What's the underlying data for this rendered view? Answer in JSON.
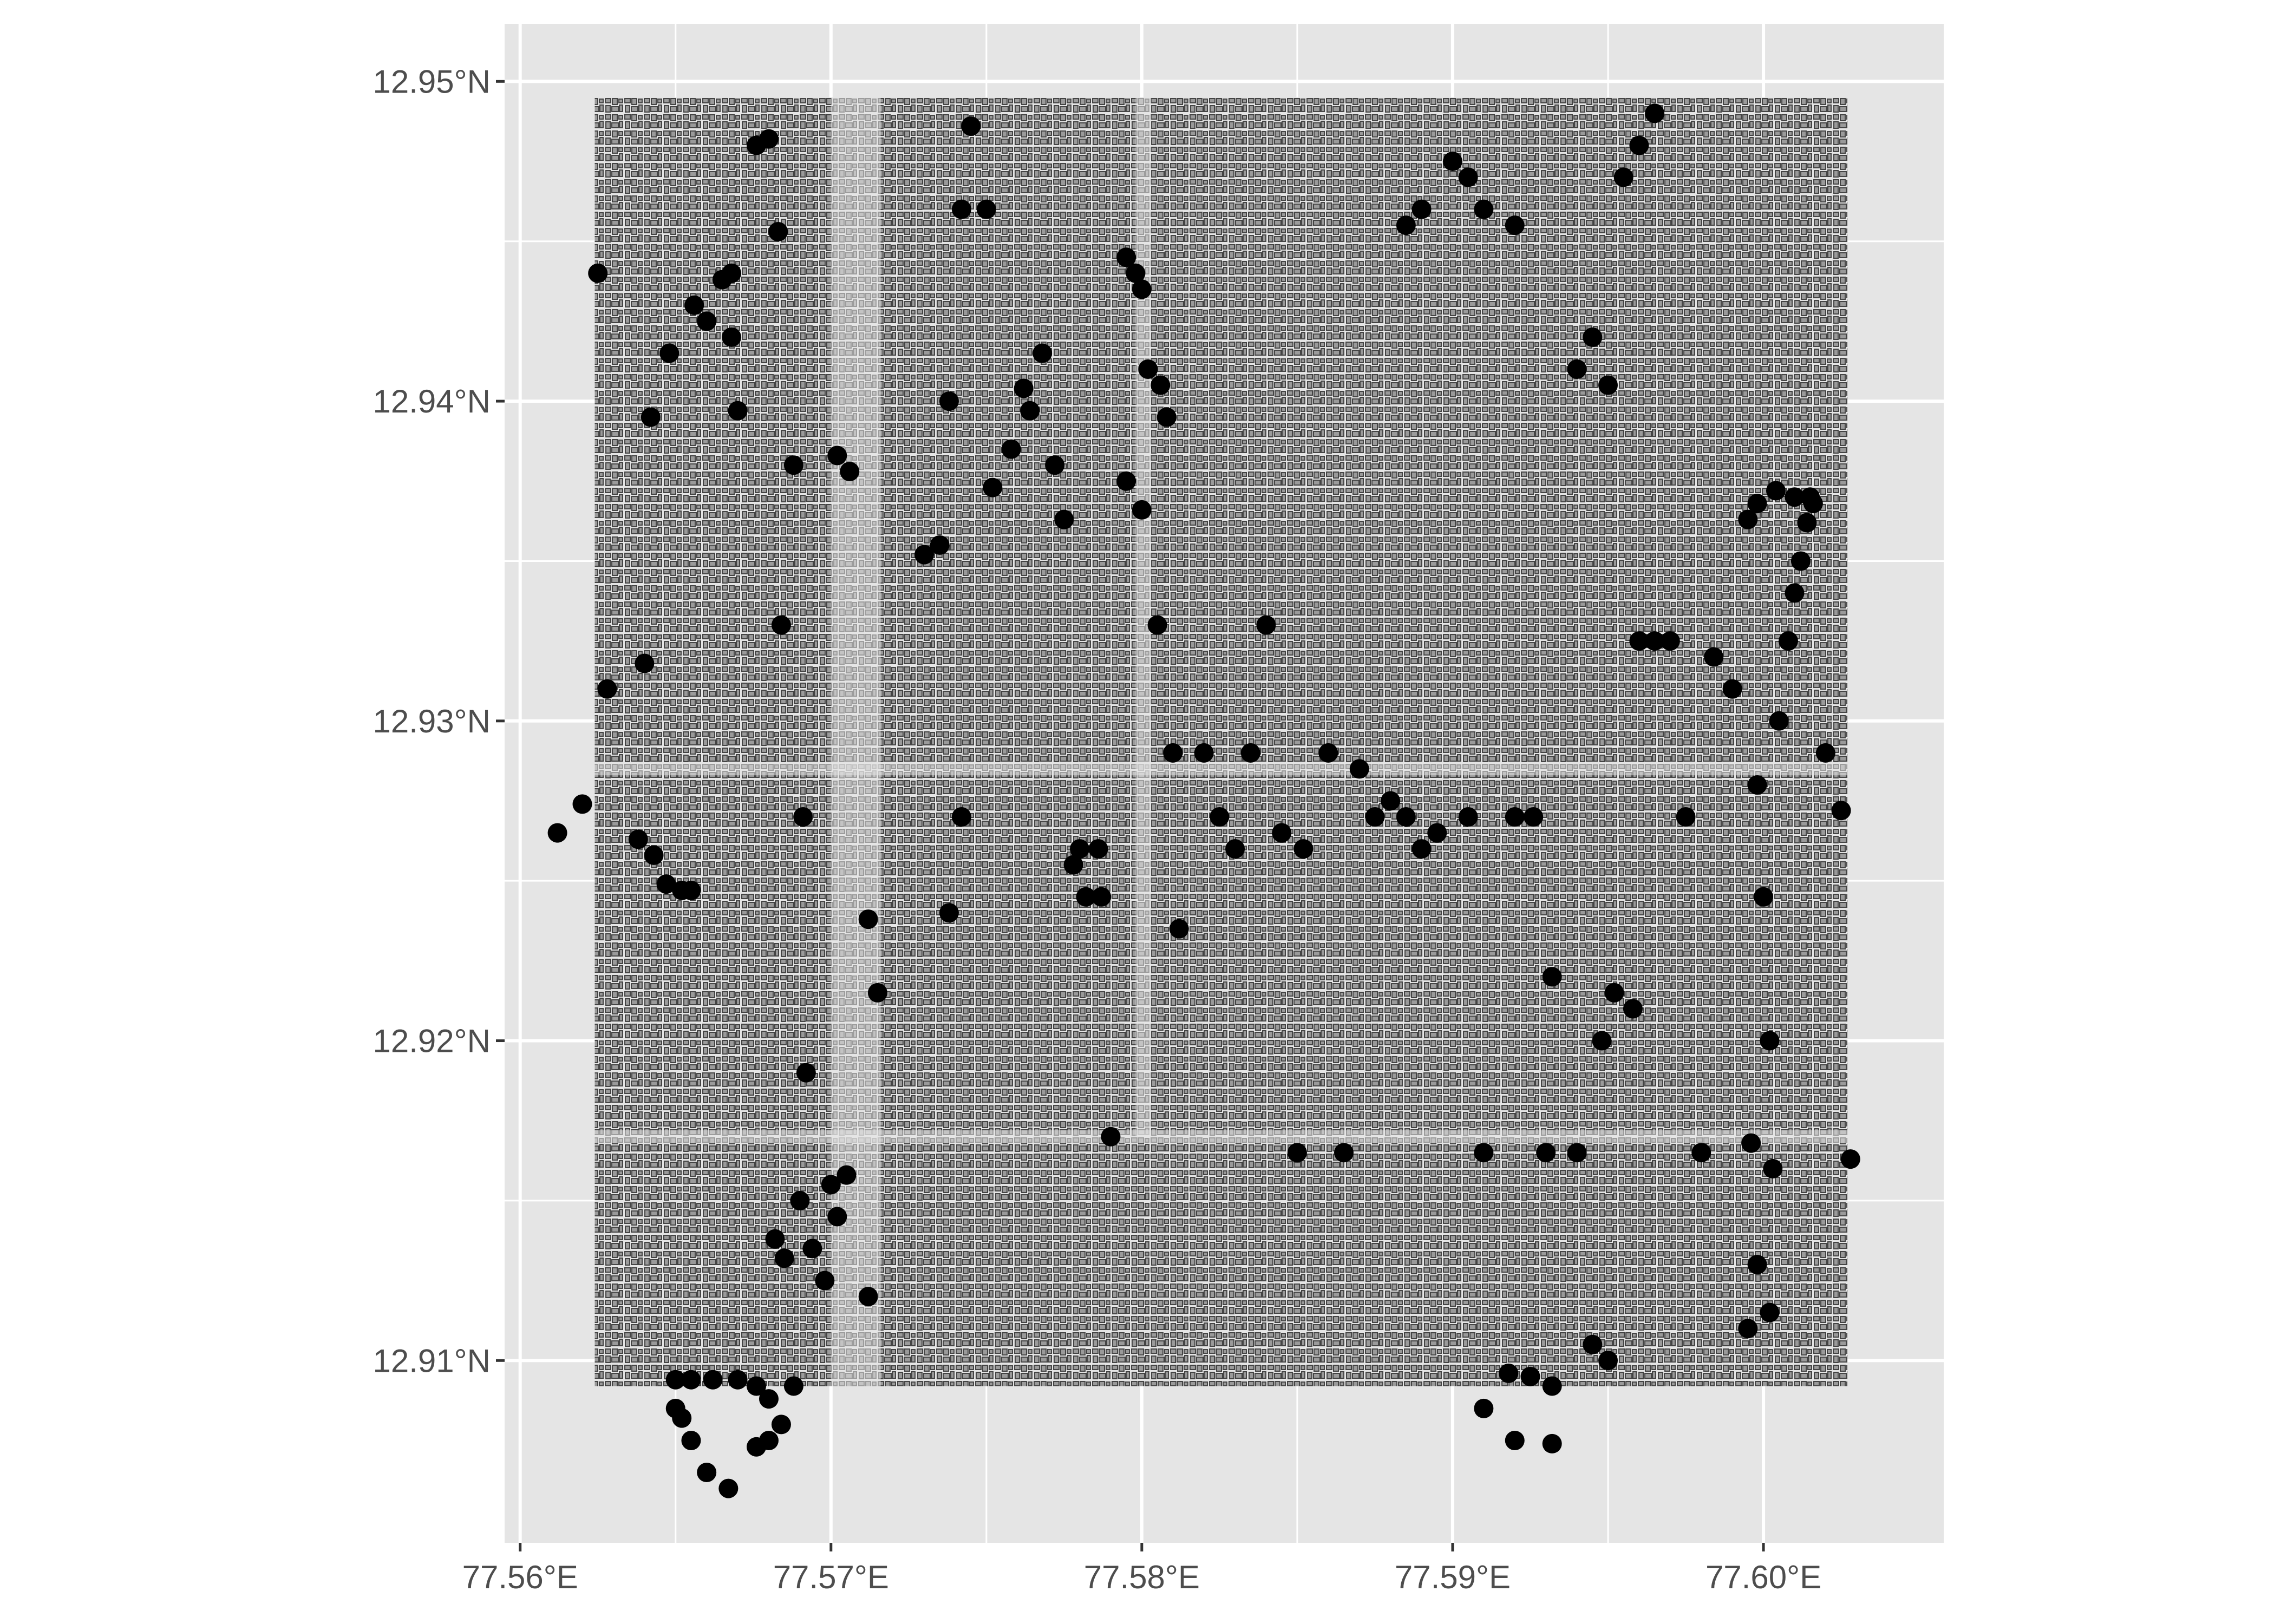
{
  "chart_data": {
    "type": "scatter",
    "title": "",
    "xlabel": "",
    "ylabel": "",
    "xlim": [
      77.5595,
      77.6058
    ],
    "ylim": [
      12.9043,
      12.9518
    ],
    "x_ticks": [
      {
        "value": 77.56,
        "label": "77.56°E"
      },
      {
        "value": 77.57,
        "label": "77.57°E"
      },
      {
        "value": 77.58,
        "label": "77.58°E"
      },
      {
        "value": 77.59,
        "label": "77.59°E"
      },
      {
        "value": 77.6,
        "label": "77.60°E"
      }
    ],
    "y_ticks": [
      {
        "value": 12.91,
        "label": "12.91°N"
      },
      {
        "value": 12.92,
        "label": "12.92°N"
      },
      {
        "value": 12.93,
        "label": "12.93°N"
      },
      {
        "value": 12.94,
        "label": "12.94°N"
      },
      {
        "value": 12.95,
        "label": "12.95°N"
      }
    ],
    "grid": true,
    "panel_background": "#e5e5e5",
    "grid_color": "#ffffff",
    "layers": [
      {
        "name": "building footprints",
        "geometry": "polygon",
        "fill": "#9a9a9a",
        "outline": "#444444",
        "extent": {
          "x": [
            77.5624,
            77.6027
          ],
          "y": [
            12.9092,
            12.9495
          ]
        }
      },
      {
        "name": "points",
        "geometry": "point",
        "color": "#000000",
        "points": [
          [
            77.5612,
            12.9265
          ],
          [
            77.562,
            12.9274
          ],
          [
            77.5638,
            12.9263
          ],
          [
            77.5643,
            12.9258
          ],
          [
            77.5647,
            12.9249
          ],
          [
            77.5652,
            12.9247
          ],
          [
            77.5655,
            12.9247
          ],
          [
            77.564,
            12.9318
          ],
          [
            77.5642,
            12.9395
          ],
          [
            77.5648,
            12.9415
          ],
          [
            77.5656,
            12.943
          ],
          [
            77.566,
            12.9425
          ],
          [
            77.5665,
            12.9438
          ],
          [
            77.5668,
            12.944
          ],
          [
            77.5668,
            12.942
          ],
          [
            77.567,
            12.9397
          ],
          [
            77.5676,
            12.948
          ],
          [
            77.568,
            12.9482
          ],
          [
            77.5683,
            12.9453
          ],
          [
            77.5684,
            12.933
          ],
          [
            77.5688,
            12.938
          ],
          [
            77.5691,
            12.927
          ],
          [
            77.5692,
            12.919
          ],
          [
            77.5702,
            12.9383
          ],
          [
            77.5706,
            12.9378
          ],
          [
            77.5712,
            12.9238
          ],
          [
            77.5715,
            12.9215
          ],
          [
            77.573,
            12.9352
          ],
          [
            77.5735,
            12.9355
          ],
          [
            77.5738,
            12.924
          ],
          [
            77.5742,
            12.927
          ],
          [
            77.5745,
            12.9486
          ],
          [
            77.5752,
            12.9373
          ],
          [
            77.5758,
            12.9385
          ],
          [
            77.5762,
            12.9404
          ],
          [
            77.5764,
            12.9397
          ],
          [
            77.5768,
            12.9415
          ],
          [
            77.5772,
            12.938
          ],
          [
            77.5775,
            12.9363
          ],
          [
            77.5778,
            12.9255
          ],
          [
            77.578,
            12.926
          ],
          [
            77.5782,
            12.9245
          ],
          [
            77.5786,
            12.926
          ],
          [
            77.5787,
            12.9245
          ],
          [
            77.579,
            12.917
          ],
          [
            77.5795,
            12.9445
          ],
          [
            77.5798,
            12.944
          ],
          [
            77.58,
            12.9435
          ],
          [
            77.5802,
            12.941
          ],
          [
            77.5806,
            12.9405
          ],
          [
            77.5808,
            12.9395
          ],
          [
            77.5795,
            12.9375
          ],
          [
            77.58,
            12.9366
          ],
          [
            77.5805,
            12.933
          ],
          [
            77.581,
            12.929
          ],
          [
            77.5812,
            12.9235
          ],
          [
            77.582,
            12.929
          ],
          [
            77.5825,
            12.927
          ],
          [
            77.583,
            12.926
          ],
          [
            77.5835,
            12.929
          ],
          [
            77.584,
            12.933
          ],
          [
            77.5845,
            12.9265
          ],
          [
            77.585,
            12.9165
          ],
          [
            77.5852,
            12.926
          ],
          [
            77.586,
            12.929
          ],
          [
            77.5865,
            12.9165
          ],
          [
            77.587,
            12.9285
          ],
          [
            77.5875,
            12.927
          ],
          [
            77.588,
            12.9275
          ],
          [
            77.5885,
            12.927
          ],
          [
            77.589,
            12.926
          ],
          [
            77.5895,
            12.9265
          ],
          [
            77.5905,
            12.927
          ],
          [
            77.591,
            12.9165
          ],
          [
            77.592,
            12.927
          ],
          [
            77.5926,
            12.927
          ],
          [
            77.593,
            12.9165
          ],
          [
            77.5932,
            12.922
          ],
          [
            77.594,
            12.9165
          ],
          [
            77.5948,
            12.92
          ],
          [
            77.5952,
            12.9215
          ],
          [
            77.5958,
            12.921
          ],
          [
            77.596,
            12.9325
          ],
          [
            77.5965,
            12.9325
          ],
          [
            77.597,
            12.9325
          ],
          [
            77.5975,
            12.927
          ],
          [
            77.598,
            12.9165
          ],
          [
            77.5984,
            12.932
          ],
          [
            77.599,
            12.931
          ],
          [
            77.5996,
            12.9168
          ],
          [
            77.5998,
            12.928
          ],
          [
            77.6,
            12.9245
          ],
          [
            77.6002,
            12.92
          ],
          [
            77.6003,
            12.916
          ],
          [
            77.6005,
            12.93
          ],
          [
            77.6008,
            12.9325
          ],
          [
            77.601,
            12.934
          ],
          [
            77.6012,
            12.935
          ],
          [
            77.6014,
            12.9362
          ],
          [
            77.6015,
            12.937
          ],
          [
            77.602,
            12.929
          ],
          [
            77.6025,
            12.9272
          ],
          [
            77.6028,
            12.9163
          ],
          [
            77.5995,
            12.9363
          ],
          [
            77.5998,
            12.9368
          ],
          [
            77.6004,
            12.9372
          ],
          [
            77.601,
            12.937
          ],
          [
            77.6016,
            12.9368
          ],
          [
            77.5998,
            12.913
          ],
          [
            77.5995,
            12.911
          ],
          [
            77.6002,
            12.9115
          ],
          [
            77.591,
            12.9085
          ],
          [
            77.5918,
            12.9096
          ],
          [
            77.5925,
            12.9095
          ],
          [
            77.5932,
            12.9092
          ],
          [
            77.592,
            12.9075
          ],
          [
            77.5932,
            12.9074
          ],
          [
            77.5945,
            12.9105
          ],
          [
            77.595,
            12.91
          ],
          [
            77.566,
            12.9065
          ],
          [
            77.5655,
            12.9075
          ],
          [
            77.5652,
            12.9082
          ],
          [
            77.565,
            12.9085
          ],
          [
            77.5667,
            12.906
          ],
          [
            77.5676,
            12.9092
          ],
          [
            77.568,
            12.9088
          ],
          [
            77.5684,
            12.908
          ],
          [
            77.568,
            12.9075
          ],
          [
            77.5676,
            12.9073
          ],
          [
            77.565,
            12.9094
          ],
          [
            77.5655,
            12.9094
          ],
          [
            77.5662,
            12.9094
          ],
          [
            77.567,
            12.9094
          ],
          [
            77.5688,
            12.9092
          ],
          [
            77.5682,
            12.9138
          ],
          [
            77.5685,
            12.9132
          ],
          [
            77.569,
            12.915
          ],
          [
            77.5694,
            12.9135
          ],
          [
            77.5698,
            12.9125
          ],
          [
            77.57,
            12.9155
          ],
          [
            77.5705,
            12.9158
          ],
          [
            77.5702,
            12.9145
          ],
          [
            77.5712,
            12.912
          ],
          [
            77.5738,
            12.94
          ],
          [
            77.5742,
            12.946
          ],
          [
            77.575,
            12.946
          ],
          [
            77.5625,
            12.944
          ],
          [
            77.5628,
            12.931
          ],
          [
            77.589,
            12.946
          ],
          [
            77.5885,
            12.9455
          ],
          [
            77.594,
            12.941
          ],
          [
            77.5945,
            12.942
          ],
          [
            77.595,
            12.9405
          ],
          [
            77.5955,
            12.947
          ],
          [
            77.596,
            12.948
          ],
          [
            77.5965,
            12.949
          ],
          [
            77.59,
            12.9475
          ],
          [
            77.5905,
            12.947
          ],
          [
            77.591,
            12.946
          ],
          [
            77.592,
            12.9455
          ]
        ]
      }
    ]
  }
}
